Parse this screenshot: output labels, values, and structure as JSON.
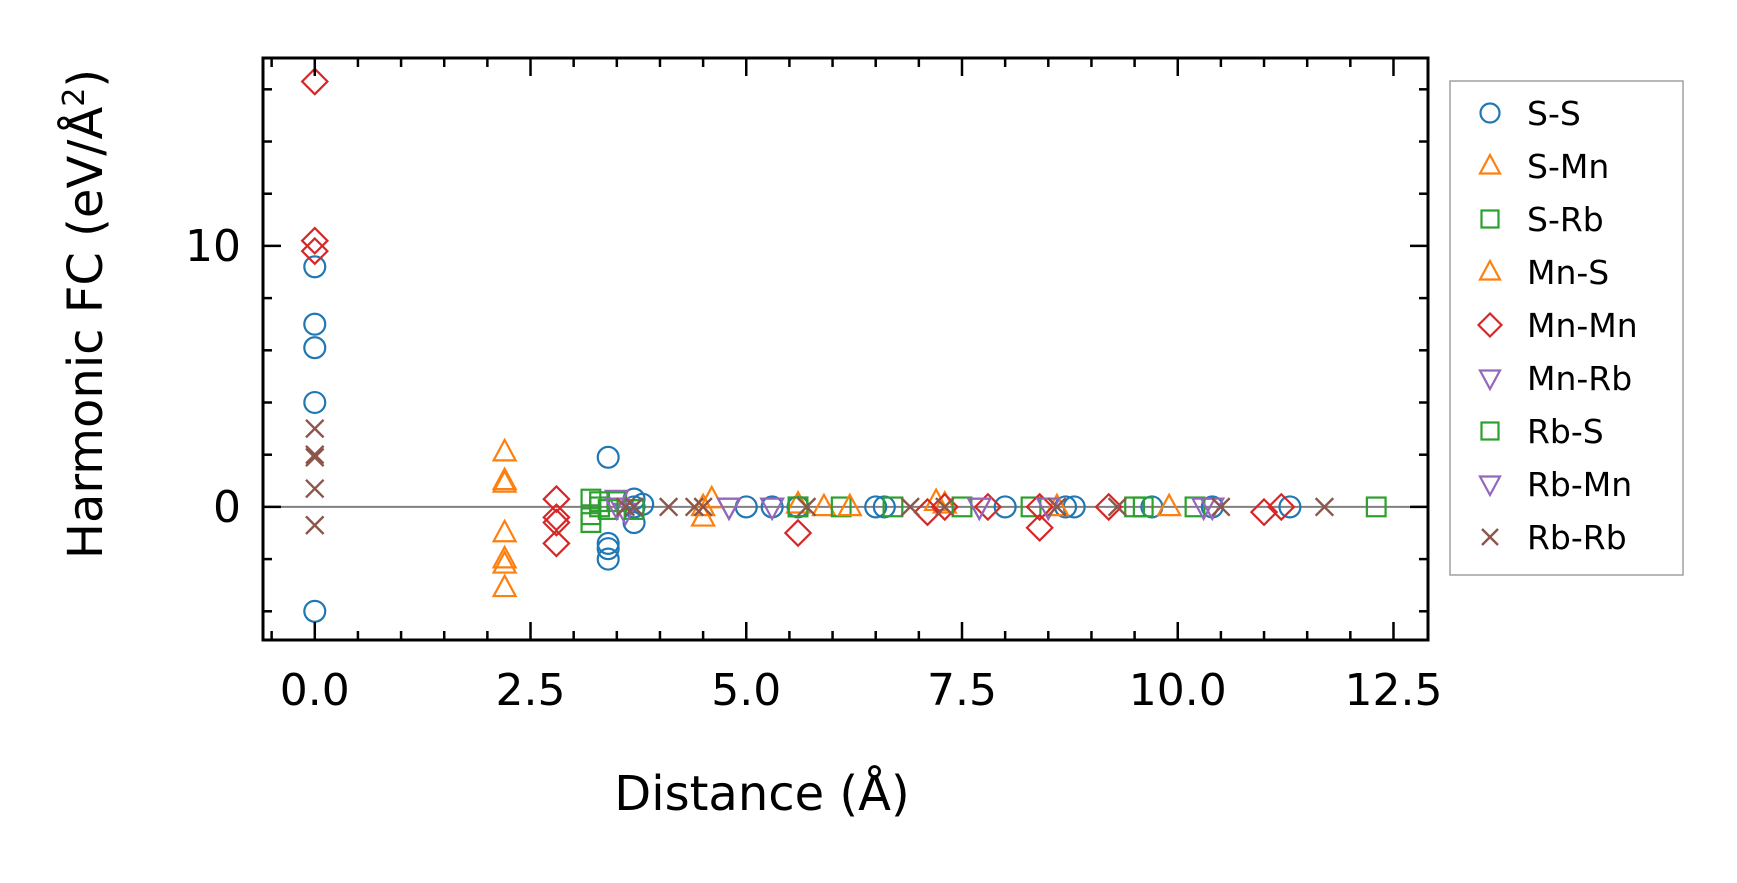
{
  "chart_data": {
    "type": "scatter",
    "title": "",
    "xlabel": "Distance (Å)",
    "ylabel_main": "Harmonic FC (eV/Å",
    "ylabel_sup": "2",
    "ylabel_close": ")",
    "xlim": [
      -0.6,
      12.9
    ],
    "ylim": [
      -5.1,
      17.2
    ],
    "x_ticks": [
      0.0,
      2.5,
      5.0,
      7.5,
      10.0,
      12.5
    ],
    "x_tick_labels": [
      "0.0",
      "2.5",
      "5.0",
      "7.5",
      "10.0",
      "12.5"
    ],
    "y_ticks": [
      0,
      10
    ],
    "y_tick_labels": [
      "0",
      "10"
    ],
    "zero_line": true,
    "legend_position": "outside-right",
    "series": [
      {
        "name": "S-S",
        "marker": "circle",
        "color": "#1f77b4",
        "points": [
          [
            0,
            9.2
          ],
          [
            0,
            7.0
          ],
          [
            0,
            6.1
          ],
          [
            0,
            4.0
          ],
          [
            0,
            -4.0
          ],
          [
            3.4,
            1.9
          ],
          [
            3.4,
            -1.4
          ],
          [
            3.4,
            -1.6
          ],
          [
            3.4,
            -2.0
          ],
          [
            3.7,
            0.3
          ],
          [
            3.7,
            -0.6
          ],
          [
            3.7,
            0.0
          ],
          [
            3.8,
            0.1
          ],
          [
            5.0,
            0.0
          ],
          [
            5.3,
            0.0
          ],
          [
            5.6,
            0.0
          ],
          [
            6.5,
            0.0
          ],
          [
            6.6,
            0.0
          ],
          [
            8.0,
            0.0
          ],
          [
            8.7,
            0.0
          ],
          [
            8.8,
            0.0
          ],
          [
            9.7,
            0.0
          ],
          [
            10.4,
            0.0
          ],
          [
            11.3,
            0.0
          ]
        ]
      },
      {
        "name": "S-Mn",
        "marker": "triangle-up",
        "color": "#ff7f0e",
        "points": [
          [
            2.2,
            2.1
          ],
          [
            2.2,
            1.0
          ],
          [
            2.2,
            0.9
          ],
          [
            2.2,
            -1.0
          ],
          [
            2.2,
            -2.0
          ],
          [
            2.2,
            -2.2
          ],
          [
            2.2,
            -3.1
          ],
          [
            4.5,
            -0.4
          ],
          [
            4.6,
            0.3
          ],
          [
            5.9,
            0.0
          ],
          [
            7.2,
            0.2
          ],
          [
            9.9,
            0.0
          ]
        ]
      },
      {
        "name": "S-Rb",
        "marker": "square",
        "color": "#2ca02c",
        "points": [
          [
            3.2,
            0.3
          ],
          [
            3.2,
            -0.3
          ],
          [
            3.2,
            -0.6
          ],
          [
            3.3,
            0.0
          ],
          [
            3.5,
            0.2
          ],
          [
            3.7,
            -0.1
          ],
          [
            5.6,
            0.0
          ],
          [
            6.1,
            0.0
          ],
          [
            6.7,
            0.0
          ],
          [
            8.3,
            0.0
          ],
          [
            9.5,
            0.0
          ],
          [
            10.2,
            0.0
          ],
          [
            12.3,
            0.0
          ]
        ]
      },
      {
        "name": "Mn-S",
        "marker": "triangle-up",
        "color": "#ff7f0e",
        "points": [
          [
            4.5,
            0.0
          ],
          [
            5.6,
            0.1
          ],
          [
            6.2,
            0.0
          ],
          [
            7.3,
            0.1
          ],
          [
            8.6,
            0.0
          ]
        ]
      },
      {
        "name": "Mn-Mn",
        "marker": "diamond",
        "color": "#d62728",
        "points": [
          [
            0,
            16.3
          ],
          [
            0,
            10.2
          ],
          [
            0,
            9.8
          ],
          [
            2.8,
            0.3
          ],
          [
            2.8,
            -0.4
          ],
          [
            2.8,
            -0.6
          ],
          [
            2.8,
            -1.4
          ],
          [
            5.6,
            -1.0
          ],
          [
            7.1,
            -0.2
          ],
          [
            7.3,
            0.0
          ],
          [
            7.8,
            0.0
          ],
          [
            8.4,
            -0.8
          ],
          [
            8.4,
            0.0
          ],
          [
            9.2,
            0.0
          ],
          [
            11.0,
            -0.2
          ],
          [
            11.2,
            0.0
          ]
        ]
      },
      {
        "name": "Mn-Rb",
        "marker": "triangle-down",
        "color": "#9467bd",
        "points": [
          [
            3.5,
            0.3
          ],
          [
            3.6,
            -0.2
          ],
          [
            4.8,
            0.0
          ],
          [
            5.3,
            0.0
          ],
          [
            7.7,
            0.0
          ],
          [
            8.5,
            0.0
          ],
          [
            10.4,
            0.0
          ]
        ]
      },
      {
        "name": "Rb-S",
        "marker": "square",
        "color": "#2ca02c",
        "points": [
          [
            3.3,
            0.2
          ],
          [
            3.4,
            -0.1
          ],
          [
            5.6,
            0.0
          ],
          [
            7.5,
            0.0
          ],
          [
            9.6,
            0.0
          ]
        ]
      },
      {
        "name": "Rb-Mn",
        "marker": "triangle-down",
        "color": "#9467bd",
        "points": [
          [
            3.5,
            0.0
          ],
          [
            4.8,
            0.0
          ],
          [
            7.7,
            0.0
          ],
          [
            10.3,
            0.0
          ]
        ]
      },
      {
        "name": "Rb-Rb",
        "marker": "x",
        "color": "#8c564b",
        "points": [
          [
            0,
            3.0
          ],
          [
            0,
            2.0
          ],
          [
            0,
            1.9
          ],
          [
            0,
            0.7
          ],
          [
            0,
            -0.7
          ],
          [
            3.6,
            0.0
          ],
          [
            3.7,
            0.0
          ],
          [
            4.1,
            0.0
          ],
          [
            4.4,
            0.0
          ],
          [
            4.5,
            0.0
          ],
          [
            5.7,
            0.0
          ],
          [
            6.9,
            0.0
          ],
          [
            7.3,
            0.0
          ],
          [
            8.6,
            0.0
          ],
          [
            9.3,
            0.0
          ],
          [
            10.5,
            0.0
          ],
          [
            11.7,
            0.0
          ]
        ]
      }
    ]
  }
}
